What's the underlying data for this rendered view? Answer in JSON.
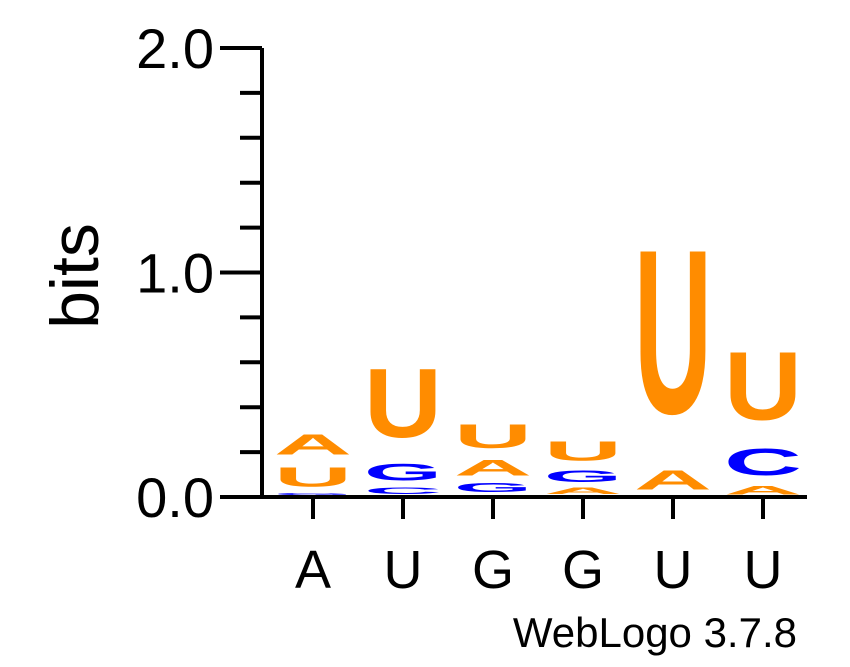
{
  "chart_data": {
    "type": "sequence-logo",
    "ylabel": "bits",
    "ylim": [
      0,
      2.0
    ],
    "yticks": [
      {
        "value": 0.0,
        "label": "0.0"
      },
      {
        "value": 1.0,
        "label": "1.0"
      },
      {
        "value": 2.0,
        "label": "2.0"
      }
    ],
    "minor_tick_step": 0.2,
    "positions": [
      {
        "label": "A",
        "stack": [
          {
            "letter": "C",
            "height": 0.005
          },
          {
            "letter": "G",
            "height": 0.015
          },
          {
            "letter": "U",
            "height": 0.14
          },
          {
            "letter": "A",
            "height": 0.145
          }
        ]
      },
      {
        "label": "U",
        "stack": [
          {
            "letter": "A",
            "height": 0.005
          },
          {
            "letter": "C",
            "height": 0.045
          },
          {
            "letter": "G",
            "height": 0.12
          },
          {
            "letter": "U",
            "height": 0.49
          }
        ]
      },
      {
        "label": "G",
        "stack": [
          {
            "letter": "C",
            "height": 0.01
          },
          {
            "letter": "G",
            "height": 0.065
          },
          {
            "letter": "A",
            "height": 0.11
          },
          {
            "letter": "U",
            "height": 0.17
          }
        ]
      },
      {
        "label": "G",
        "stack": [
          {
            "letter": "C",
            "height": 0.005
          },
          {
            "letter": "A",
            "height": 0.045
          },
          {
            "letter": "G",
            "height": 0.085
          },
          {
            "letter": "U",
            "height": 0.14
          }
        ]
      },
      {
        "label": "U",
        "stack": [
          {
            "letter": "G",
            "height": 0.005
          },
          {
            "letter": "A",
            "height": 0.14
          },
          {
            "letter": "U",
            "height": 1.17
          }
        ]
      },
      {
        "label": "U",
        "stack": [
          {
            "letter": "A",
            "height": 0.06
          },
          {
            "letter": "C",
            "height": 0.19
          },
          {
            "letter": "U",
            "height": 0.485
          }
        ]
      }
    ],
    "colors": {
      "A": "#ff8c00",
      "U": "#ff8c00",
      "G": "#0000ff",
      "C": "#0000ff"
    }
  },
  "footer": {
    "text": "WebLogo 3.7.8"
  }
}
